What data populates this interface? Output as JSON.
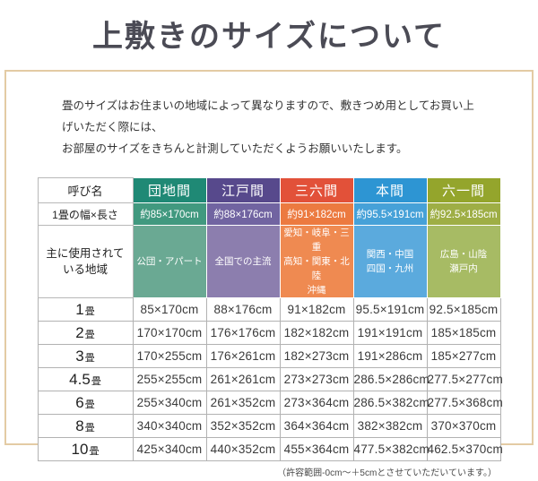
{
  "page": {
    "title": "上敷きのサイズについて",
    "intro_line1": "畳のサイズはお住まいの地域によって異なりますので、敷きつめ用としてお買い上げいただく際には、",
    "intro_line2": "お部屋のサイズをきちんと計測していただくようお願いいたします。",
    "footnote": "（許容範囲-0cm〜＋5cmとさせていただいています。）"
  },
  "frame": {
    "border_color": "#e3cba4"
  },
  "table": {
    "corner_label": "呼び名",
    "size_row_label": "1畳の幅×長さ",
    "region_row_label": [
      "主に使用されて",
      "いる地域"
    ],
    "columns": [
      {
        "name": "団地間",
        "size": "約85×170cm",
        "regions": [
          "公団・アパート"
        ],
        "colors": {
          "dark": "#1f8975",
          "mid": "#41997f",
          "light": "#6aa993"
        }
      },
      {
        "name": "江戸間",
        "size": "約88×176cm",
        "regions": [
          "全国での主流"
        ],
        "colors": {
          "dark": "#57498c",
          "mid": "#7164a1",
          "light": "#8c7eae"
        }
      },
      {
        "name": "三六間",
        "size": "約91×182cm",
        "regions": [
          "愛知・岐阜・三重",
          "高知・関東・北陸",
          "沖縄"
        ],
        "colors": {
          "dark": "#e25139",
          "mid": "#ec7a40",
          "light": "#ef8a51"
        }
      },
      {
        "name": "本間",
        "size": "約95.5×191cm",
        "regions": [
          "関西・中国",
          "四国・九州"
        ],
        "colors": {
          "dark": "#2d95d3",
          "mid": "#46a1d8",
          "light": "#5baadd"
        }
      },
      {
        "name": "六一間",
        "size": "約92.5×185cm",
        "regions": [
          "広島・山陰",
          "瀬戸内"
        ],
        "colors": {
          "dark": "#94a52c",
          "mid": "#9eae45",
          "light": "#a7bb64"
        }
      }
    ],
    "rows": [
      {
        "num": "1",
        "unit": "畳",
        "values": [
          "85×170cm",
          "88×176cm",
          "91×182cm",
          "95.5×191cm",
          "92.5×185cm"
        ]
      },
      {
        "num": "2",
        "unit": "畳",
        "values": [
          "170×170cm",
          "176×176cm",
          "182×182cm",
          "191×191cm",
          "185×185cm"
        ]
      },
      {
        "num": "3",
        "unit": "畳",
        "values": [
          "170×255cm",
          "176×261cm",
          "182×273cm",
          "191×286cm",
          "185×277cm"
        ]
      },
      {
        "num": "4.5",
        "unit": "畳",
        "values": [
          "255×255cm",
          "261×261cm",
          "273×273cm",
          "286.5×286cm",
          "277.5×277cm"
        ]
      },
      {
        "num": "6",
        "unit": "畳",
        "values": [
          "255×340cm",
          "261×352cm",
          "273×364cm",
          "286.5×382cm",
          "277.5×368cm"
        ]
      },
      {
        "num": "8",
        "unit": "畳",
        "values": [
          "340×340cm",
          "352×352cm",
          "364×364cm",
          "382×382cm",
          "370×370cm"
        ]
      },
      {
        "num": "10",
        "unit": "畳",
        "values": [
          "425×340cm",
          "440×352cm",
          "455×364cm",
          "477.5×382cm",
          "462.5×370cm"
        ]
      }
    ]
  }
}
